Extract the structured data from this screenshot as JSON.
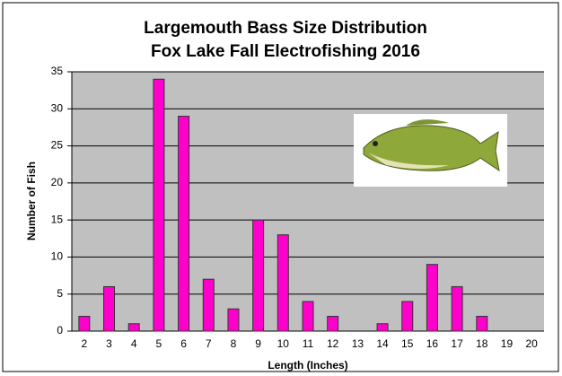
{
  "chart_data": {
    "type": "bar",
    "title": "Largemouth Bass Size Distribution",
    "subtitle": "Fox Lake Fall Electrofishing 2016",
    "x_label": "Length (Inches)",
    "y_label": "Number of Fish",
    "categories": [
      "2",
      "3",
      "4",
      "5",
      "6",
      "7",
      "8",
      "9",
      "10",
      "11",
      "12",
      "13",
      "14",
      "15",
      "16",
      "17",
      "18",
      "19",
      "20"
    ],
    "values": [
      2,
      6,
      1,
      34,
      29,
      7,
      3,
      15,
      13,
      4,
      2,
      0,
      1,
      4,
      9,
      6,
      2,
      0,
      0
    ],
    "color": "#ff00cc",
    "ylim": [
      0,
      35
    ],
    "yticks": [
      0,
      5,
      10,
      15,
      20,
      25,
      30,
      35
    ],
    "grid": true
  }
}
